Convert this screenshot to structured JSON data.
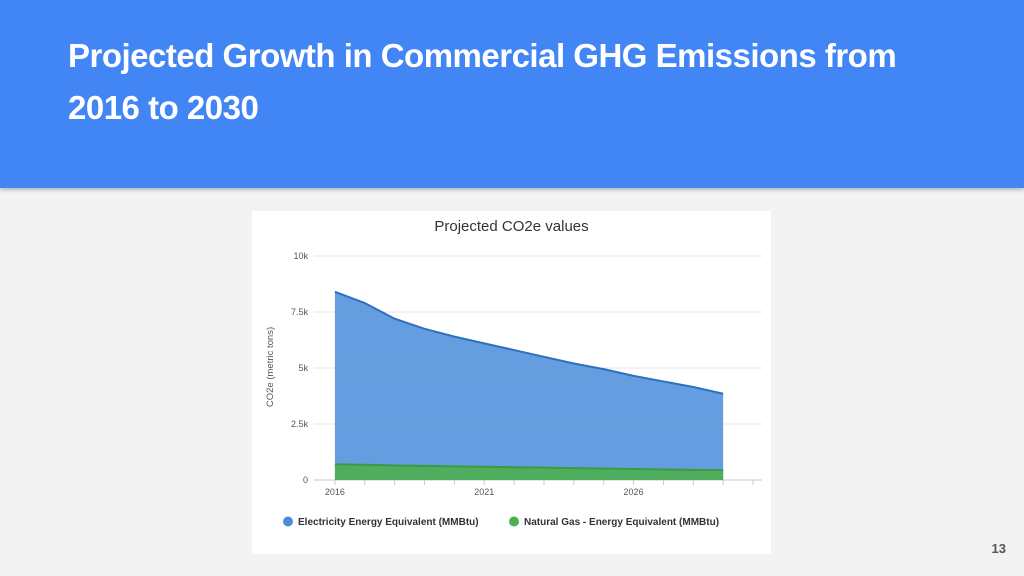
{
  "slide": {
    "title": "Projected Growth in Commercial GHG Emissions from 2016 to 2030",
    "page_number": "13"
  },
  "colors": {
    "header": "#4285f4",
    "electricity": "#4a8ddb",
    "natural_gas": "#4caf50"
  },
  "chart_data": {
    "type": "area",
    "title": "Projected CO2e values",
    "xlabel": "",
    "ylabel": "CO2e (metric tons)",
    "x": [
      2016,
      2017,
      2018,
      2019,
      2020,
      2021,
      2022,
      2023,
      2024,
      2025,
      2026,
      2027,
      2028,
      2029
    ],
    "xlim": [
      2015.3,
      2030.3
    ],
    "x_ticks": [
      2016,
      2021,
      2026
    ],
    "x_tick_labels": [
      "2016",
      "2021",
      "2026"
    ],
    "ylim": [
      0,
      10000
    ],
    "y_ticks": [
      0,
      2500,
      5000,
      7500,
      10000
    ],
    "y_tick_labels": [
      "0",
      "2.5k",
      "5k",
      "7.5k",
      "10k"
    ],
    "stacked": false,
    "grid": true,
    "legend_position": "bottom",
    "series": [
      {
        "name": "Electricity Energy Equivalent (MMBtu)",
        "color": "#4a8ddb",
        "values": [
          8400,
          7900,
          7200,
          6750,
          6400,
          6100,
          5800,
          5500,
          5200,
          4950,
          4650,
          4400,
          4150,
          3850
        ]
      },
      {
        "name": "Natural Gas - Energy Equivalent (MMBtu)",
        "color": "#4caf50",
        "values": [
          700,
          680,
          650,
          630,
          610,
          590,
          570,
          550,
          530,
          510,
          490,
          470,
          450,
          440
        ]
      }
    ]
  }
}
